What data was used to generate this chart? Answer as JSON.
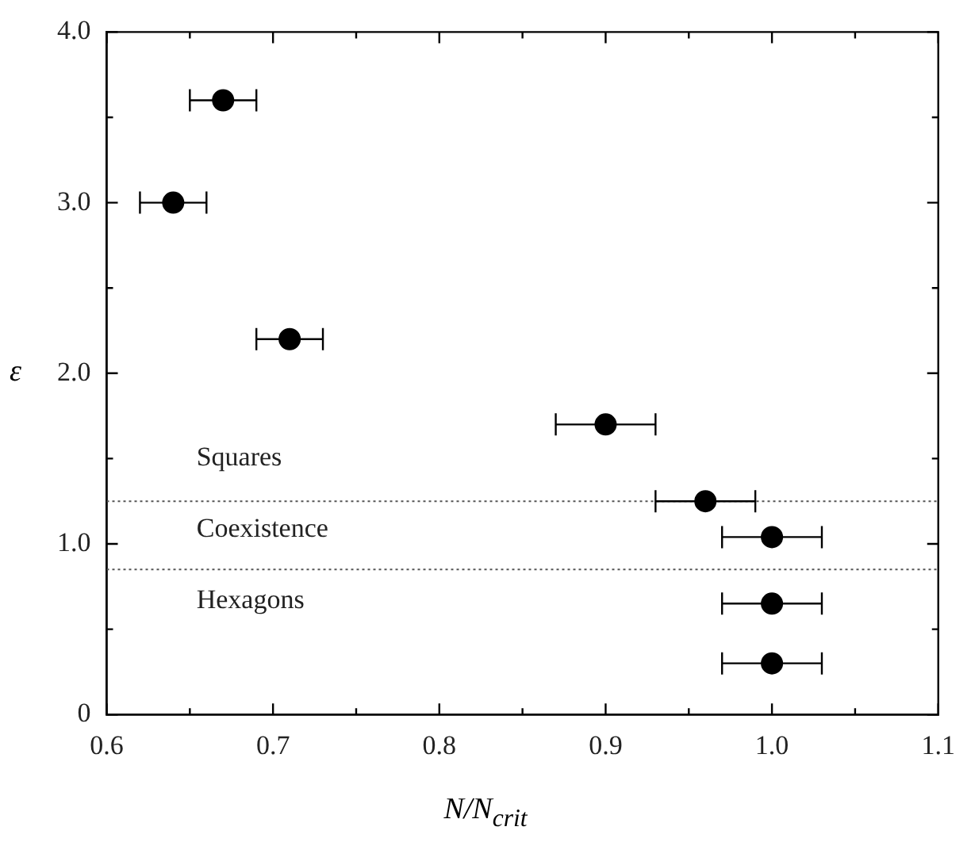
{
  "chart_data": {
    "type": "scatter",
    "xlabel": "N/N$_{crit}$",
    "ylabel": "ε",
    "x": [
      0.67,
      0.64,
      0.71,
      0.9,
      0.96,
      1.0,
      1.0,
      1.0
    ],
    "series": [
      {
        "color": "#000000",
        "values": [
          3.6,
          3.0,
          2.2,
          1.7,
          1.25,
          1.04,
          0.65,
          0.3
        ],
        "xerrors": [
          0.02,
          0.02,
          0.02,
          0.03,
          0.03,
          0.03,
          0.03,
          0.03
        ]
      }
    ],
    "xlim": [
      0.6,
      1.1
    ],
    "xticks": [
      0.6,
      {
        "value": 0.65,
        "label": null
      },
      0.7,
      {
        "value": 0.75,
        "label": null
      },
      0.8,
      {
        "value": 0.85,
        "label": null
      },
      0.9,
      {
        "value": 0.95,
        "label": null
      },
      {
        "value": 1.0,
        "label": "1.0"
      },
      {
        "value": 1.05,
        "label": null
      },
      1.1
    ],
    "ylim": [
      0,
      4.0
    ],
    "yticks": [
      0,
      {
        "value": 0.5,
        "label": null
      },
      {
        "value": 1,
        "label": "1.0"
      },
      {
        "value": 1.5,
        "label": null
      },
      {
        "value": 2,
        "label": "2.0"
      },
      {
        "value": 2.5,
        "label": null
      },
      {
        "value": 3,
        "label": "3.0"
      },
      {
        "value": 3.5,
        "label": null
      },
      {
        "value": 4,
        "label": "4.0"
      }
    ],
    "ref_lines": [
      {
        "axis": "y",
        "value": 1.25,
        "line_style": "dotted",
        "color": "#555555"
      },
      {
        "axis": "y",
        "value": 0.85,
        "line_style": "dotted",
        "color": "#555555"
      }
    ],
    "annotations": [
      "Squares",
      "Coexistence",
      "Hexagons"
    ],
    "marker": "circle",
    "grid": false,
    "legend": false
  }
}
